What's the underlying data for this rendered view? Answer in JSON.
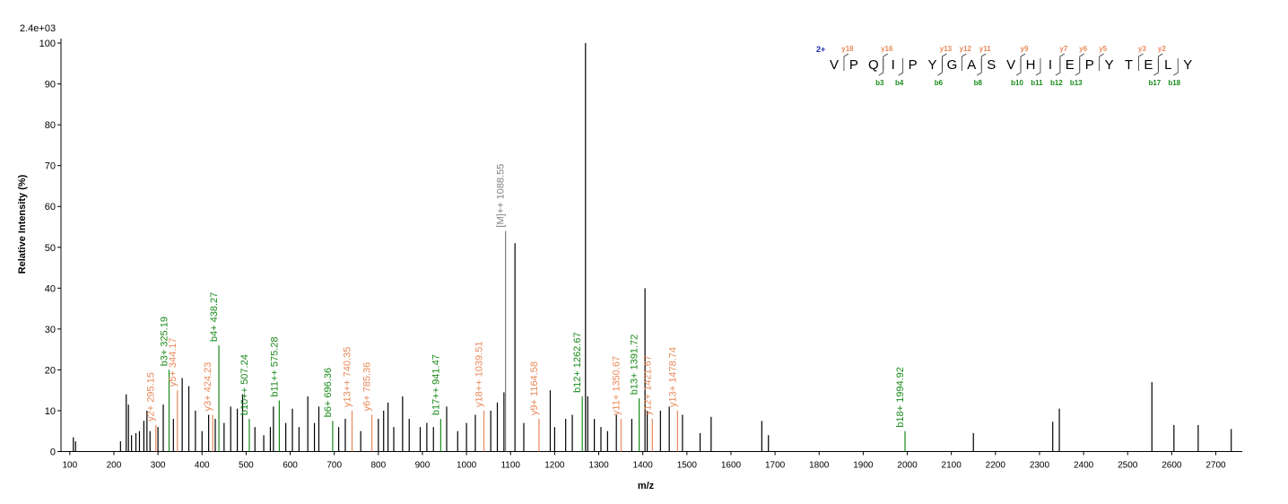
{
  "chart_data": {
    "type": "spectrum",
    "scale_label": "2.4e+03",
    "xlabel": "m/z",
    "ylabel": "Relative  Intensity (%)",
    "xlim": [
      80,
      2760
    ],
    "ylim": [
      0,
      101
    ],
    "xticks": [
      100,
      200,
      300,
      400,
      500,
      600,
      700,
      800,
      900,
      1000,
      1100,
      1200,
      1300,
      1400,
      1500,
      1600,
      1700,
      1800,
      1900,
      2000,
      2100,
      2200,
      2300,
      2400,
      2500,
      2600,
      2700
    ],
    "yticks": [
      0,
      10,
      20,
      30,
      40,
      50,
      60,
      70,
      80,
      90,
      100
    ],
    "series": [
      {
        "color": "#000000",
        "x": [
          108,
          113,
          215,
          228,
          233,
          240,
          250,
          258,
          268,
          275,
          282,
          300,
          312,
          335,
          355,
          370,
          385,
          400,
          415,
          430,
          450,
          465,
          480,
          492,
          520,
          540,
          555,
          562,
          590,
          605,
          620,
          640,
          655,
          665,
          710,
          725,
          760,
          800,
          812,
          822,
          835,
          855,
          870,
          895,
          910,
          925,
          955,
          980,
          1000,
          1020,
          1055,
          1070,
          1085,
          1110,
          1130,
          1190,
          1200,
          1225,
          1240,
          1270,
          1275,
          1290,
          1305,
          1320,
          1340,
          1375,
          1405,
          1410,
          1440,
          1460,
          1490,
          1530,
          1555,
          1670,
          1685,
          2150,
          2330,
          2345,
          2555,
          2605,
          2660,
          2735
        ],
        "values": [
          3.5,
          2.5,
          2.5,
          14,
          11.5,
          4,
          4.5,
          5,
          7.5,
          10,
          5,
          6,
          11.5,
          8,
          18,
          16,
          10,
          5,
          9,
          8,
          7,
          11,
          10.5,
          14,
          6,
          4,
          6,
          11,
          7,
          10.5,
          6,
          13.5,
          7,
          11,
          6,
          8,
          5,
          8,
          10,
          12,
          6,
          13.5,
          8,
          6,
          7,
          6,
          11,
          5,
          7,
          9,
          10,
          12,
          14.5,
          51,
          7,
          15,
          6,
          8,
          9,
          100,
          13.5,
          8,
          6,
          5,
          9,
          8,
          40,
          10,
          10,
          11,
          9,
          4.5,
          8.5,
          7.5,
          4,
          4.5,
          7.3,
          10.5,
          17,
          6.5,
          6.5,
          5.5
        ]
      },
      {
        "color": "#1a8a1a",
        "x": [
          325.19,
          438.27,
          507.24,
          575.28,
          696.36,
          941.47,
          1262.67,
          1391.72,
          1994.92
        ],
        "values": [
          20,
          26,
          8,
          12.5,
          7.5,
          8,
          13.5,
          13,
          5
        ],
        "labels": [
          "b3+ 325.19",
          "b4+ 438.27",
          "b10++ 507.24",
          "b11++ 575.28",
          "b6+ 696.36",
          "b17++ 941.47",
          "b12+ 1262.67",
          "b13+ 1391.72",
          "b18+ 1994.92"
        ]
      },
      {
        "color": "#e8895a",
        "x": [
          295.15,
          344.17,
          424.23,
          740.35,
          785.36,
          1039.51,
          1164.58,
          1350.67,
          1421.67,
          1478.74
        ],
        "values": [
          6.5,
          15,
          9,
          10,
          9,
          10,
          8,
          8,
          8,
          10
        ],
        "labels": [
          "y2+ 295.15",
          "y5+ 344.17",
          "y3+ 424.23",
          "y13++ 740.35",
          "y6+ 785.36",
          "y18++ 1039.51",
          "y9+ 1164.58",
          "y11+ 1350.67",
          "y12+ 1421.67",
          "y13+ 1478.74"
        ]
      },
      {
        "color": "#808080",
        "x": [
          1088.55
        ],
        "values": [
          54
        ],
        "labels": [
          "[M]++ 1088.55"
        ]
      }
    ],
    "sequence": {
      "charge": "2+",
      "residues": [
        "V",
        "P",
        "Q",
        "I",
        "P",
        "Y",
        "G",
        "A",
        "S",
        "V",
        "H",
        "I",
        "E",
        "P",
        "Y",
        "T",
        "E",
        "L",
        "Y"
      ],
      "y_labels": [
        "y18",
        null,
        "y16",
        null,
        null,
        "y13",
        "y12",
        "y11",
        null,
        "y9",
        null,
        "y7",
        "y6",
        "y5",
        null,
        "y3",
        "y2",
        null
      ],
      "b_labels": [
        null,
        null,
        "b3",
        "b4",
        null,
        "b6",
        null,
        "b8",
        null,
        "b10",
        "b11",
        "b12",
        "b13",
        null,
        null,
        null,
        "b17",
        "b18"
      ]
    }
  }
}
